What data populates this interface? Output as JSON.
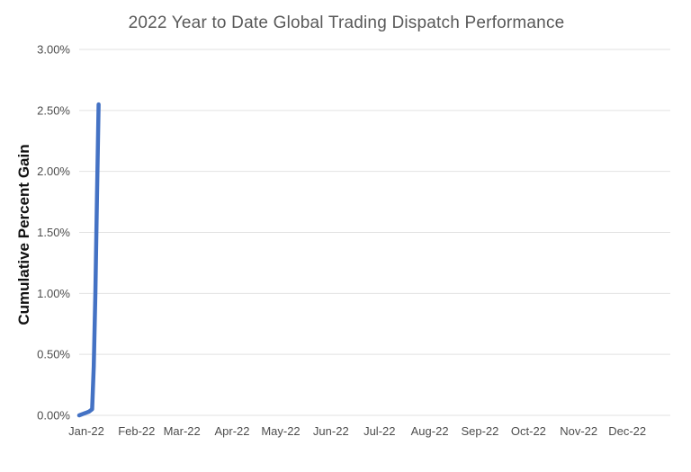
{
  "chart_data": {
    "type": "line",
    "title": "2022 Year to Date Global Trading Dispatch Performance",
    "xlabel": "",
    "ylabel": "Cumulative Percent Gain",
    "x_tick_labels": [
      "Jan-22",
      "Feb-22",
      "Mar-22",
      "Apr-22",
      "May-22",
      "Jun-22",
      "Jul-22",
      "Aug-22",
      "Sep-22",
      "Oct-22",
      "Nov-22",
      "Dec-22"
    ],
    "x_tick_days": [
      1,
      32,
      60,
      91,
      121,
      152,
      182,
      213,
      244,
      274,
      305,
      335
    ],
    "x_range_days": [
      1,
      366
    ],
    "y_ticks": [
      0.0,
      0.5,
      1.0,
      1.5,
      2.0,
      2.5,
      3.0
    ],
    "y_tick_labels": [
      "0.00%",
      "0.50%",
      "1.00%",
      "1.50%",
      "2.00%",
      "2.50%",
      "3.00%"
    ],
    "ylim": [
      0,
      3.0
    ],
    "grid": "horizontal",
    "legend": "none",
    "series": [
      {
        "name": "Cumulative Percent Gain",
        "color": "#4472C4",
        "points": [
          {
            "day": 1,
            "value": 0.0
          },
          {
            "day": 3,
            "value": 0.01
          },
          {
            "day": 5,
            "value": 0.02
          },
          {
            "day": 7,
            "value": 0.03
          },
          {
            "day": 9,
            "value": 0.05
          },
          {
            "day": 10,
            "value": 0.4
          },
          {
            "day": 11,
            "value": 1.0
          },
          {
            "day": 12,
            "value": 1.8
          },
          {
            "day": 13,
            "value": 2.55
          }
        ]
      }
    ],
    "colors": {
      "title": "#595959",
      "tick_labels": "#4d4d4d",
      "axis_title": "#111111",
      "gridline": "#e2e2e2",
      "line": "#4472C4",
      "background": "#ffffff"
    }
  }
}
